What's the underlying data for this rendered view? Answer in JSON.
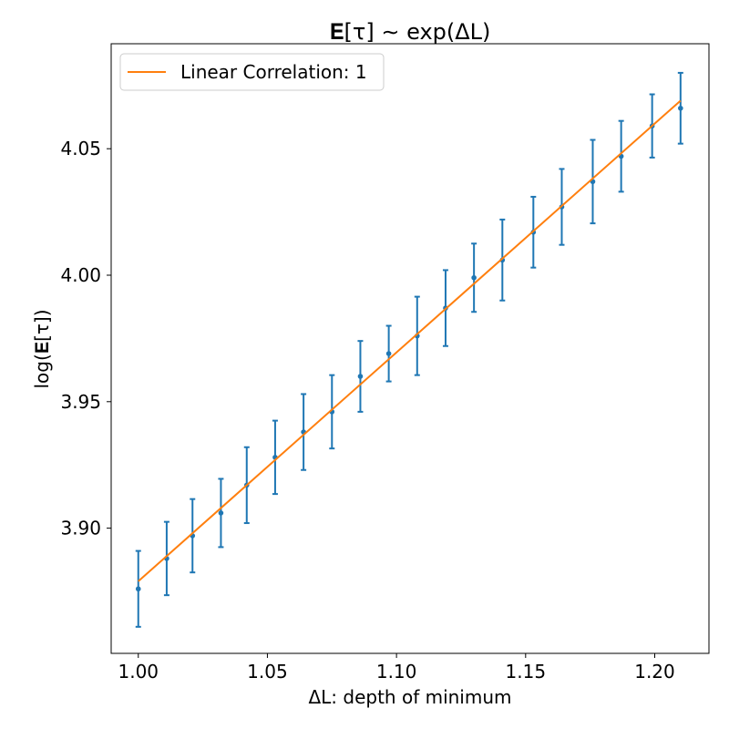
{
  "chart_data": {
    "type": "scatter",
    "title": "𝐄[τ] ∼ exp(ΔL)",
    "xlabel": "ΔL: depth of minimum",
    "ylabel": "log(𝐄[τ])",
    "xlim": [
      0.9895,
      1.221
    ],
    "ylim": [
      3.8505,
      4.0915
    ],
    "x_ticks": [
      1.0,
      1.05,
      1.1,
      1.15,
      1.2
    ],
    "x_tick_labels": [
      "1.00",
      "1.05",
      "1.10",
      "1.15",
      "1.20"
    ],
    "y_ticks": [
      3.9,
      3.95,
      4.0,
      4.05
    ],
    "y_tick_labels": [
      "3.90",
      "3.95",
      "4.00",
      "4.05"
    ],
    "grid": false,
    "legend_position": "upper-left",
    "series": [
      {
        "name": "Linear Correlation: 1",
        "type": "line",
        "color": "#ff7f0e",
        "x": [
          1.0,
          1.21
        ],
        "y": [
          3.879,
          4.069
        ]
      },
      {
        "type": "errorbar",
        "color": "#1f77b4",
        "x": [
          1.0,
          1.011,
          1.021,
          1.032,
          1.042,
          1.053,
          1.064,
          1.075,
          1.086,
          1.097,
          1.108,
          1.119,
          1.13,
          1.141,
          1.153,
          1.164,
          1.176,
          1.187,
          1.199,
          1.21
        ],
        "y": [
          3.876,
          3.888,
          3.897,
          3.906,
          3.917,
          3.928,
          3.938,
          3.946,
          3.96,
          3.969,
          3.976,
          3.987,
          3.999,
          4.006,
          4.017,
          4.027,
          4.037,
          4.047,
          4.059,
          4.066
        ],
        "yerr": [
          0.015,
          0.0145,
          0.0145,
          0.0135,
          0.015,
          0.0145,
          0.015,
          0.0145,
          0.014,
          0.011,
          0.0155,
          0.015,
          0.0135,
          0.016,
          0.014,
          0.015,
          0.0165,
          0.014,
          0.0125,
          0.014
        ]
      }
    ]
  }
}
